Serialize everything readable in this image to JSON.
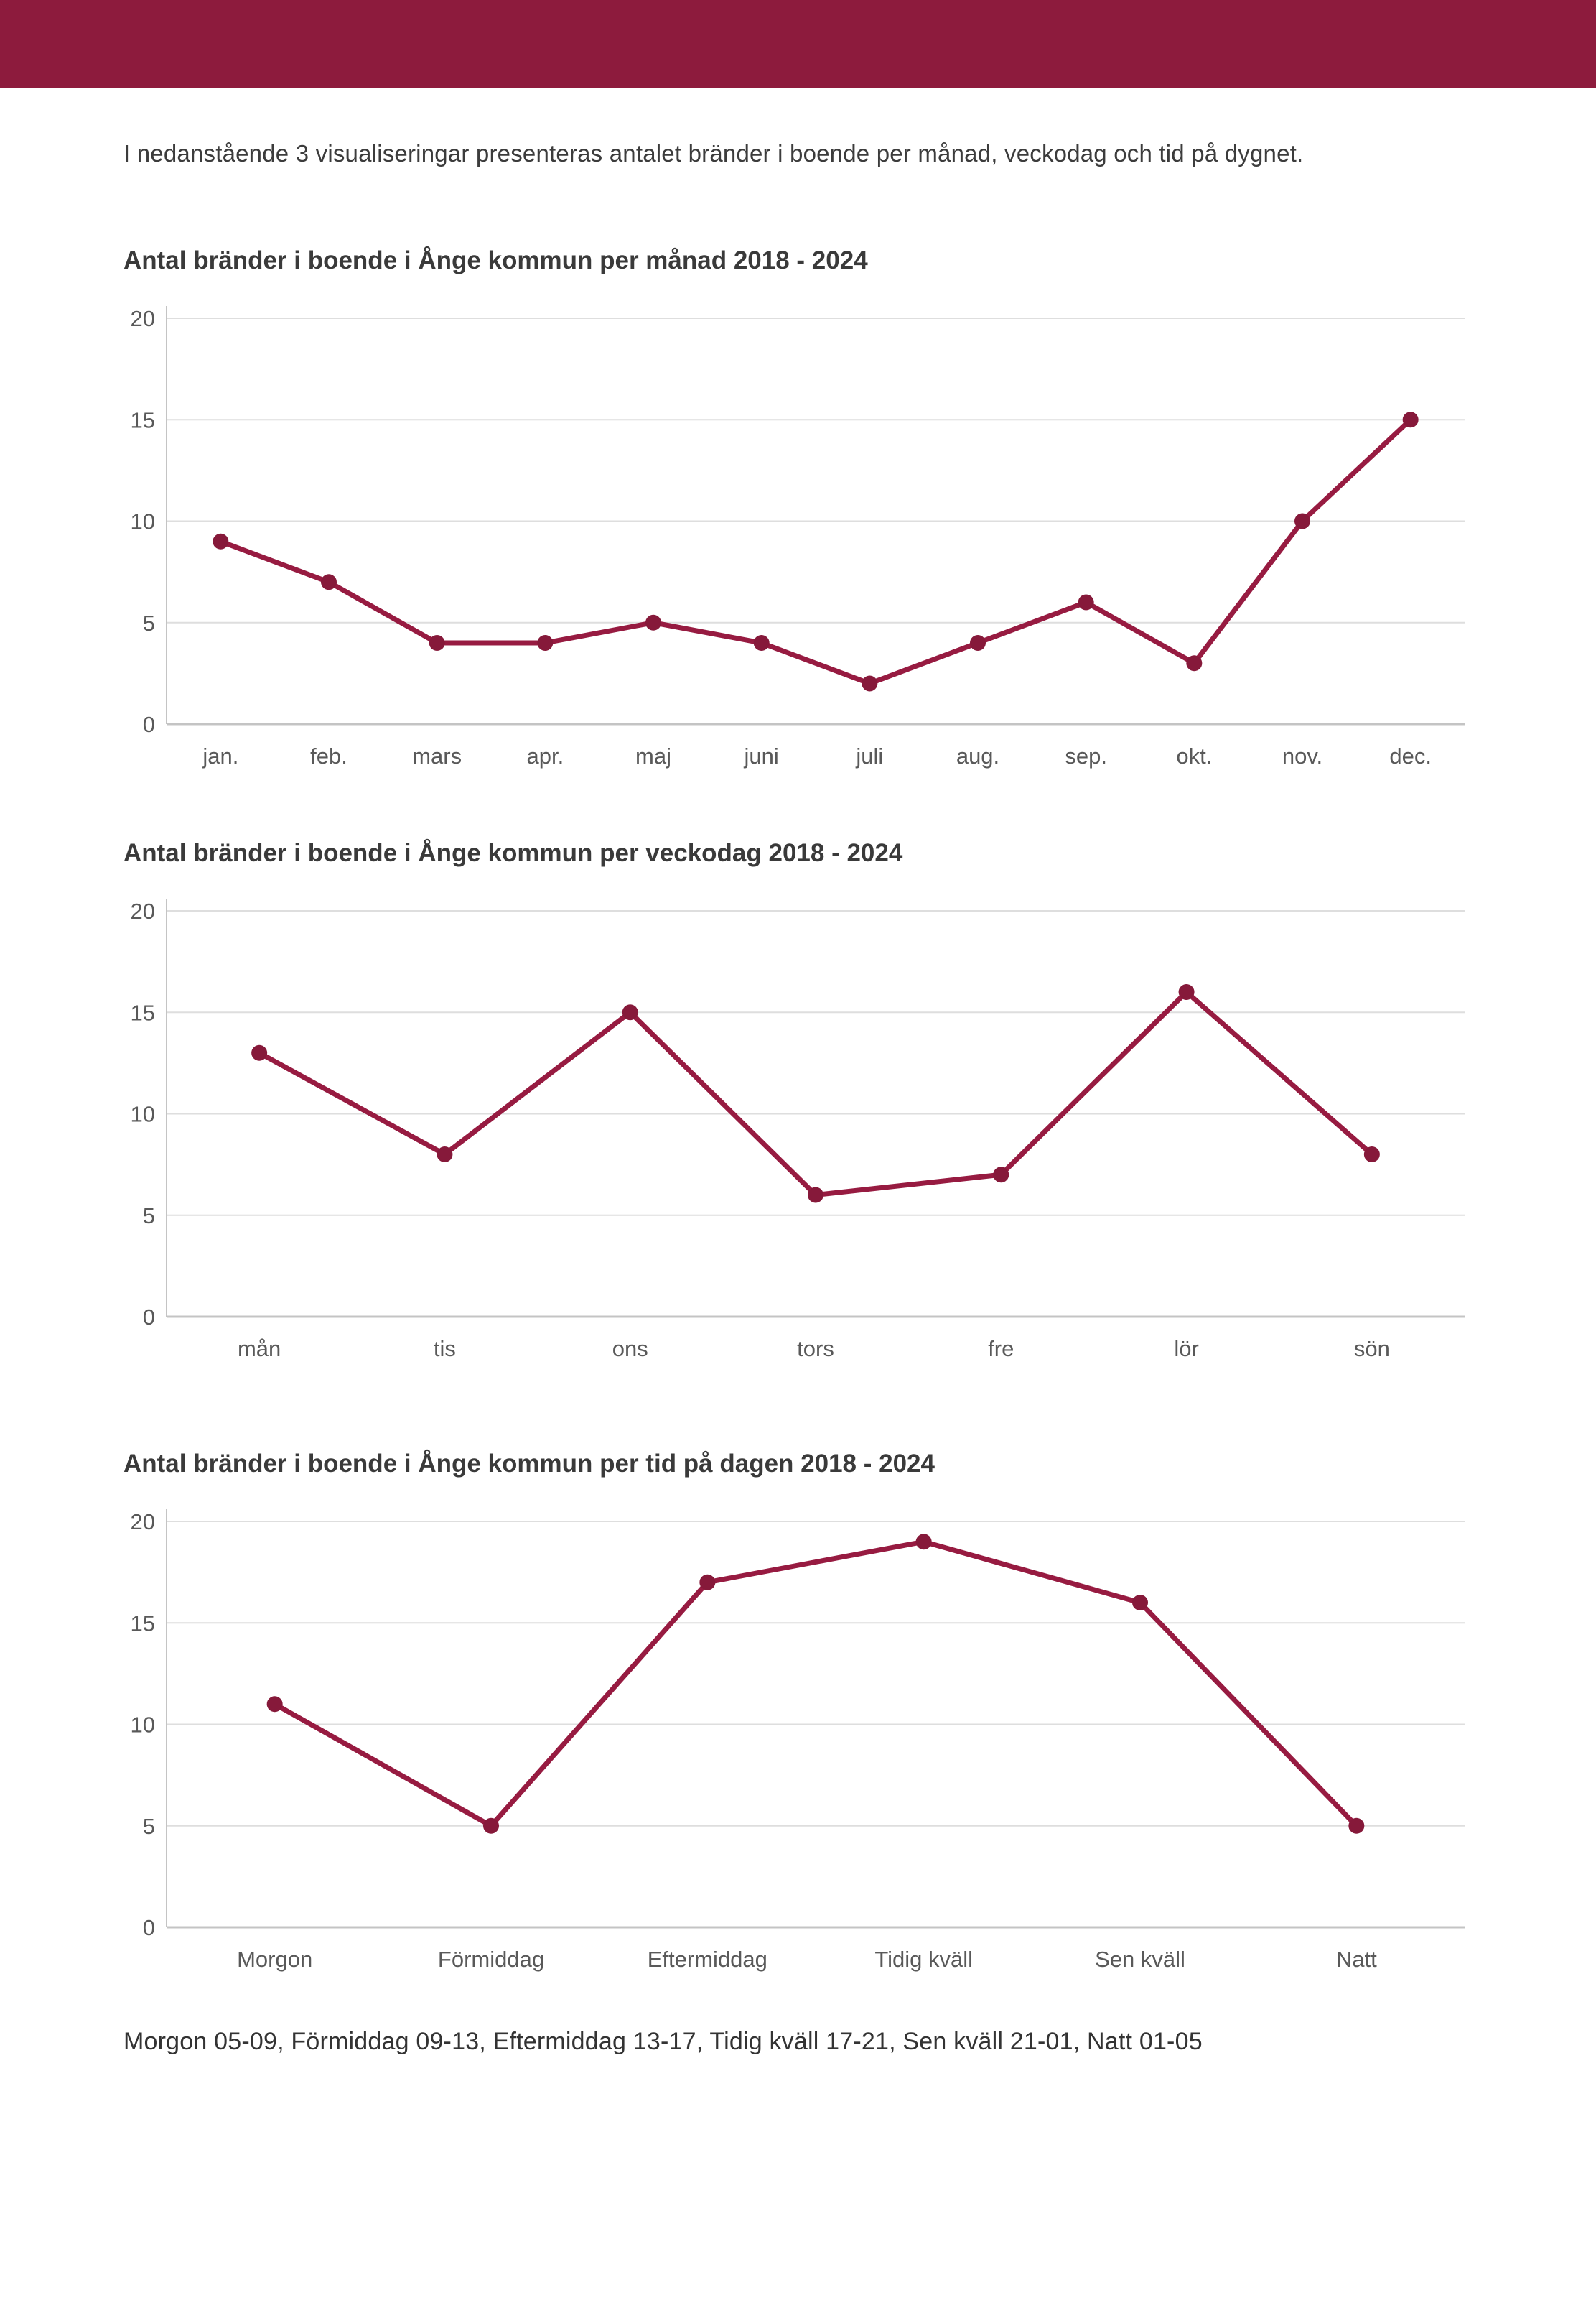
{
  "header": {
    "bar_color": "#8d1b3d"
  },
  "intro": "I nedanstående 3 visualiseringar presenteras antalet bränder i boende per månad, veckodag och tid på dygnet.",
  "footnote": "Morgon 05-09, Förmiddag 09-13, Eftermiddag 13-17, Tidig kväll 17-21, Sen kväll 21-01, Natt 01-05",
  "colors": {
    "accent_maroon": "#8d1b3d",
    "line": "#971b41",
    "point": "#86193a",
    "grid": "#dedede",
    "axis": "#c4c4c4",
    "tick_label": "#595959",
    "title_text": "#3a3a3a"
  },
  "chart_data": [
    {
      "type": "line",
      "title": "Antal bränder i boende i Ånge kommun per månad 2018 - 2024",
      "categories": [
        "jan.",
        "feb.",
        "mars",
        "apr.",
        "maj",
        "juni",
        "juli",
        "aug.",
        "sep.",
        "okt.",
        "nov.",
        "dec."
      ],
      "values": [
        9,
        7,
        4,
        4,
        5,
        4,
        2,
        4,
        6,
        3,
        10,
        15
      ],
      "xlabel": "",
      "ylabel": "",
      "ylim": [
        0,
        20
      ],
      "yticks": [
        0,
        5,
        10,
        15,
        20
      ],
      "grid": true,
      "legend": "none"
    },
    {
      "type": "line",
      "title": "Antal bränder i boende i Ånge kommun per veckodag 2018 - 2024",
      "categories": [
        "mån",
        "tis",
        "ons",
        "tors",
        "fre",
        "lör",
        "sön"
      ],
      "values": [
        13,
        8,
        15,
        6,
        7,
        16,
        8
      ],
      "xlabel": "",
      "ylabel": "",
      "ylim": [
        0,
        20
      ],
      "yticks": [
        0,
        5,
        10,
        15,
        20
      ],
      "grid": true,
      "legend": "none"
    },
    {
      "type": "line",
      "title": "Antal bränder i boende i Ånge kommun per tid på dagen 2018 - 2024",
      "categories": [
        "Morgon",
        "Förmiddag",
        "Eftermiddag",
        "Tidig kväll",
        "Sen kväll",
        "Natt"
      ],
      "values": [
        11,
        5,
        17,
        19,
        16,
        5
      ],
      "xlabel": "",
      "ylabel": "",
      "ylim": [
        0,
        20
      ],
      "yticks": [
        0,
        5,
        10,
        15,
        20
      ],
      "grid": true,
      "legend": "none"
    }
  ]
}
